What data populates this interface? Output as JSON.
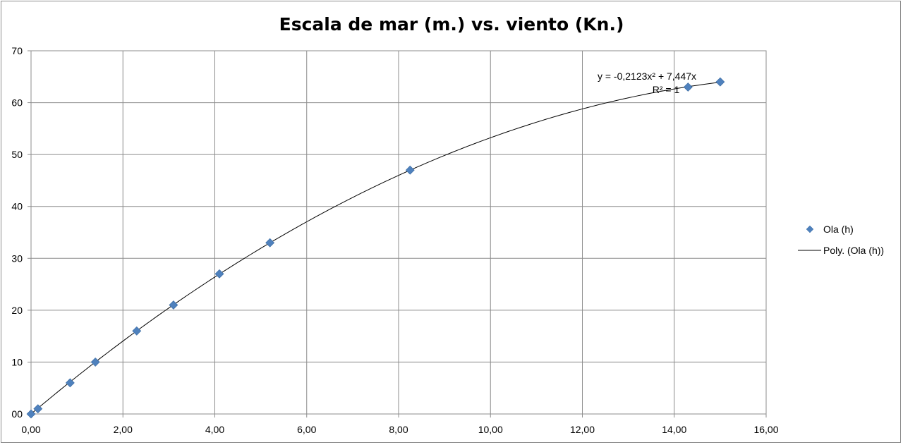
{
  "chart_data": {
    "type": "scatter",
    "title": "Escala de mar (m.) vs. viento (Kn.)",
    "xlabel": "",
    "ylabel": "",
    "xlim": [
      0,
      16
    ],
    "ylim": [
      0,
      70
    ],
    "x_ticks": [
      "0,00",
      "2,00",
      "4,00",
      "6,00",
      "8,00",
      "10,00",
      "12,00",
      "14,00",
      "16,00"
    ],
    "y_ticks": [
      "00",
      "10",
      "20",
      "30",
      "40",
      "50",
      "60",
      "70"
    ],
    "grid": true,
    "legend_position": "right",
    "series": [
      {
        "name": "Ola (h)",
        "marker": "diamond",
        "color": "#4f81bd",
        "points": [
          {
            "x": 0.0,
            "y": 0
          },
          {
            "x": 0.15,
            "y": 1
          },
          {
            "x": 0.85,
            "y": 6
          },
          {
            "x": 1.4,
            "y": 10
          },
          {
            "x": 2.3,
            "y": 16
          },
          {
            "x": 3.1,
            "y": 21
          },
          {
            "x": 4.1,
            "y": 27
          },
          {
            "x": 5.2,
            "y": 33
          },
          {
            "x": 8.25,
            "y": 47
          },
          {
            "x": 14.3,
            "y": 63
          },
          {
            "x": 15.0,
            "y": 64
          }
        ]
      }
    ],
    "trendline": {
      "name": "Poly. (Ola (h))",
      "type": "polynomial",
      "coefficients": {
        "a": -0.2123,
        "b": 7.447,
        "c": 0
      },
      "x_range": [
        0,
        15
      ],
      "color": "#000000",
      "equation_label": "y = -0,2123x² + 7,447x",
      "r2_label": "R² = 1"
    }
  }
}
